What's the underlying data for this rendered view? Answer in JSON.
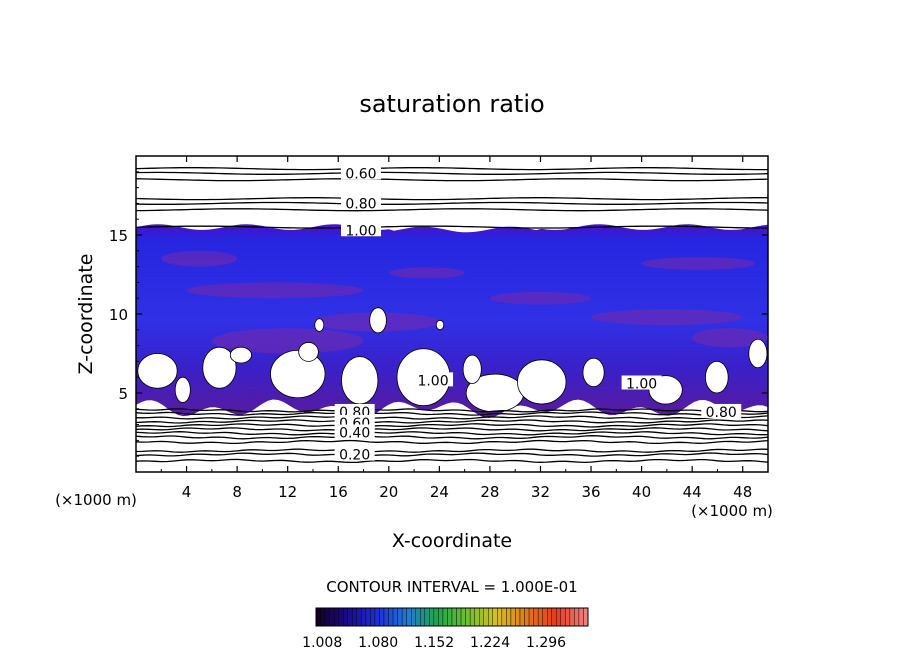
{
  "chart_data": {
    "type": "heatmap",
    "title": "saturation ratio",
    "xlabel": "X-coordinate",
    "ylabel": "Z-coordinate",
    "x_unit_label": "(×1000 m)",
    "y_unit_label": "(×1000 m)",
    "xlim": [
      0,
      50
    ],
    "ylim": [
      0,
      20
    ],
    "x_ticks": [
      4,
      8,
      12,
      16,
      20,
      24,
      28,
      32,
      36,
      40,
      44,
      48
    ],
    "y_ticks": [
      5,
      10,
      15
    ],
    "contour_interval_text": "CONTOUR INTERVAL = 1.000E-01",
    "colorbar": {
      "min": 1.0,
      "max": 1.35,
      "tick_labels": [
        "1.008",
        "1.080",
        "1.152",
        "1.224",
        "1.296"
      ],
      "colors": [
        "#140026",
        "#1a0a8c",
        "#1e30d8",
        "#1f7ad6",
        "#1aa84a",
        "#6ec030",
        "#d6c020",
        "#e07a1e",
        "#e83a1c",
        "#f08080"
      ]
    },
    "contour_labels": [
      {
        "text": "0.60",
        "x": 17.8,
        "z": 18.9
      },
      {
        "text": "0.80",
        "x": 17.8,
        "z": 17.0
      },
      {
        "text": "1.00",
        "x": 17.8,
        "z": 15.3
      },
      {
        "text": "1.00",
        "x": 23.5,
        "z": 5.8
      },
      {
        "text": "1.00",
        "x": 40.0,
        "z": 5.6
      },
      {
        "text": "0.80",
        "x": 17.3,
        "z": 3.8
      },
      {
        "text": "0.60",
        "x": 17.3,
        "z": 3.1
      },
      {
        "text": "0.40",
        "x": 17.3,
        "z": 2.5
      },
      {
        "text": "0.20",
        "x": 17.3,
        "z": 1.1
      },
      {
        "text": "0.80",
        "x": 46.3,
        "z": 3.8
      }
    ],
    "supersaturated_region": {
      "description_values": "saturation ratio > 1.0 between cloud base and tropopause",
      "z_bottom_approx": 4.0,
      "z_top_approx": 15.5
    }
  }
}
